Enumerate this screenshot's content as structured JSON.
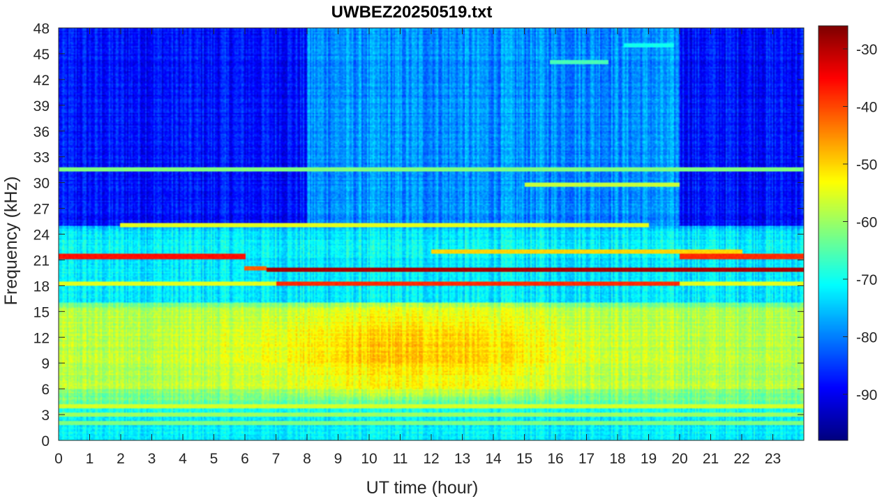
{
  "chart_data": {
    "type": "heatmap",
    "title": "UWBEZ20250519.txt",
    "xlabel": "UT time (hour)",
    "ylabel": "Frequency (kHz)",
    "xlim": [
      0,
      24
    ],
    "ylim": [
      0,
      48
    ],
    "xticks": [
      0,
      1,
      2,
      3,
      4,
      5,
      6,
      7,
      8,
      9,
      10,
      11,
      12,
      13,
      14,
      15,
      16,
      17,
      18,
      19,
      20,
      21,
      22,
      23
    ],
    "yticks": [
      0,
      3,
      6,
      9,
      12,
      15,
      18,
      21,
      24,
      27,
      30,
      33,
      36,
      39,
      42,
      45,
      48
    ],
    "colorbar": {
      "colormap": "jet",
      "clim": [
        -98,
        -26
      ],
      "ticks": [
        -90,
        -80,
        -70,
        -60,
        -50,
        -40,
        -30
      ]
    },
    "grid": false,
    "features": {
      "background_dB": [
        {
          "freq_range_kHz": [
            0,
            4
          ],
          "level_dB": -72
        },
        {
          "freq_range_kHz": [
            4,
            6
          ],
          "level_dB": -63
        },
        {
          "freq_range_kHz": [
            6,
            16
          ],
          "level_dB": -58
        },
        {
          "freq_range_kHz": [
            16,
            25
          ],
          "level_dB": -72
        },
        {
          "freq_range_kHz": [
            25,
            48
          ],
          "level_dB": -82
        }
      ],
      "daytime_enhancement": {
        "time_range_h": [
          8,
          15
        ],
        "freq_range_kHz": [
          7,
          14
        ],
        "peak_dB": -49
      },
      "narrowband_lines": [
        {
          "freq_kHz": 19.8,
          "time_range_h": [
            6.7,
            24
          ],
          "level_dB": -29
        },
        {
          "freq_kHz": 20.0,
          "time_range_h": [
            6.0,
            6.7
          ],
          "level_dB": -42
        },
        {
          "freq_kHz": 21.4,
          "time_range_h": [
            0,
            6.0
          ],
          "level_dB": -36
        },
        {
          "freq_kHz": 21.4,
          "time_range_h": [
            20.0,
            24
          ],
          "level_dB": -38
        },
        {
          "freq_kHz": 18.2,
          "time_range_h": [
            0,
            24
          ],
          "level_dB": -55
        },
        {
          "freq_kHz": 18.2,
          "time_range_h": [
            7.0,
            20.0
          ],
          "level_dB": -38
        },
        {
          "freq_kHz": 22.0,
          "time_range_h": [
            12.0,
            22.0
          ],
          "level_dB": -50
        },
        {
          "freq_kHz": 25.0,
          "time_range_h": [
            2.0,
            19.0
          ],
          "level_dB": -55
        },
        {
          "freq_kHz": 31.5,
          "time_range_h": [
            0,
            24
          ],
          "level_dB": -62
        },
        {
          "freq_kHz": 29.7,
          "time_range_h": [
            15.0,
            20.0
          ],
          "level_dB": -57
        },
        {
          "freq_kHz": 44.0,
          "time_range_h": [
            15.8,
            17.7
          ],
          "level_dB": -66
        },
        {
          "freq_kHz": 46.0,
          "time_range_h": [
            18.2,
            19.8
          ],
          "level_dB": -70
        },
        {
          "freq_kHz": 4.0,
          "time_range_h": [
            0,
            24
          ],
          "level_dB": -56
        },
        {
          "freq_kHz": 3.0,
          "time_range_h": [
            0,
            24
          ],
          "level_dB": -60
        },
        {
          "freq_kHz": 2.0,
          "time_range_h": [
            0,
            24
          ],
          "level_dB": -62
        }
      ]
    }
  }
}
